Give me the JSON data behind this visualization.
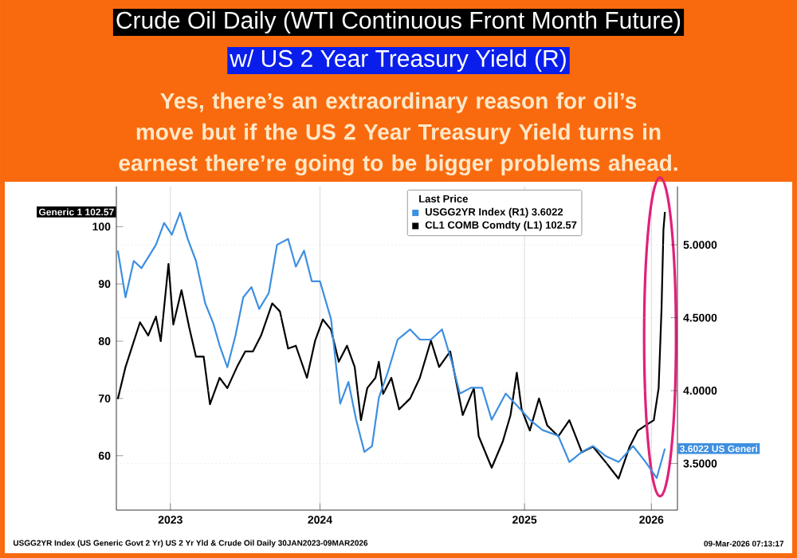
{
  "chart_data": {
    "type": "line",
    "title": "Crude Oil Daily (WTI Continuous Front Month Future)",
    "subtitle": "w/ US 2 Year Treasury Yield (R)",
    "legend_title": "Last Price",
    "annotations": [
      "Generic 1 102.57",
      "3.6022 US Generi",
      "Yes, there’s an extraordinary reason for oil’s move but if the US 2 Year Treasury Yield turns in earnest there’re going to be bigger problems ahead.",
      "USGG2YR Index (US Generic Govt 2 Yr) US 2 Yr Yld & Crude Oil Daily 30JAN2023-09MAR2026",
      "09-Mar-2026 07:13:17"
    ],
    "xlim": [
      "2023-01-27",
      "2026-04-04"
    ],
    "xticks": [
      {
        "value": "2023-05-19",
        "label": "2023"
      },
      {
        "value": "2024-03-24",
        "label": "2024"
      },
      {
        "value": "2025-05-22",
        "label": "2025"
      },
      {
        "value": "2026-02-09",
        "label": "2026"
      }
    ],
    "ylim": [
      50.5,
      107
    ],
    "yticks": [
      60,
      70,
      80,
      90,
      100
    ],
    "y2lim": [
      3.18,
      5.4
    ],
    "y2ticks": [
      {
        "value": 3.5,
        "label": "3.5000"
      },
      {
        "value": 4.0,
        "label": "4.0000"
      },
      {
        "value": 4.5,
        "label": "4.5000"
      },
      {
        "value": 5.0,
        "label": "5.0000"
      }
    ],
    "grid": true,
    "legend": "top right",
    "marker": "none",
    "line_style": "solid",
    "series": [
      {
        "name": "USGG2YR Index (R1) 3.6022",
        "color": "#3d8fe0",
        "axis": "y2",
        "x": [
          "2023-01-30",
          "2023-02-15",
          "2023-03-04",
          "2023-03-20",
          "2023-04-19",
          "2023-05-06",
          "2023-05-22",
          "2023-06-08",
          "2023-06-24",
          "2023-07-11",
          "2023-07-30",
          "2023-08-16",
          "2023-08-29",
          "2023-09-14",
          "2023-10-01",
          "2023-10-17",
          "2023-11-03",
          "2023-11-19",
          "2023-12-09",
          "2023-12-26",
          "2024-01-18",
          "2024-02-03",
          "2024-02-20",
          "2024-03-07",
          "2024-03-24",
          "2024-04-16",
          "2024-05-05",
          "2024-05-22",
          "2024-06-07",
          "2024-06-24",
          "2024-07-10",
          "2024-07-24",
          "2024-08-12",
          "2024-09-01",
          "2024-09-27",
          "2024-10-17",
          "2024-11-09",
          "2024-12-02",
          "2024-12-22",
          "2025-01-08",
          "2025-01-31",
          "2025-02-23",
          "2025-03-15",
          "2025-04-13",
          "2025-05-03",
          "2025-06-02",
          "2025-06-28",
          "2025-07-31",
          "2025-08-23",
          "2025-09-18",
          "2025-10-11",
          "2025-11-07",
          "2025-12-03",
          "2026-01-02",
          "2026-01-28",
          "2026-02-20",
          "2026-03-09"
        ],
        "values": [
          4.96,
          4.64,
          4.89,
          4.84,
          5.0,
          5.15,
          5.07,
          5.22,
          5.04,
          4.89,
          4.6,
          4.46,
          4.31,
          4.16,
          4.38,
          4.64,
          4.71,
          4.56,
          4.67,
          5.0,
          5.04,
          4.85,
          4.96,
          4.75,
          4.75,
          4.49,
          3.91,
          4.06,
          3.8,
          3.58,
          3.62,
          3.95,
          4.13,
          4.35,
          4.42,
          4.35,
          4.35,
          4.42,
          4.2,
          3.98,
          4.02,
          4.02,
          3.8,
          3.98,
          3.91,
          3.8,
          3.73,
          3.69,
          3.51,
          3.58,
          3.62,
          3.55,
          3.51,
          3.62,
          3.51,
          3.4,
          3.6022
        ]
      },
      {
        "name": "CL1 COMB Comdty (L1) 102.57",
        "color": "#000000",
        "x": [
          "2023-01-30",
          "2023-02-15",
          "2023-03-17",
          "2023-04-03",
          "2023-04-19",
          "2023-04-29",
          "2023-05-15",
          "2023-05-25",
          "2023-06-11",
          "2023-06-27",
          "2023-07-11",
          "2023-07-27",
          "2023-08-09",
          "2023-08-29",
          "2023-09-14",
          "2023-10-04",
          "2023-10-21",
          "2023-11-06",
          "2023-11-23",
          "2023-12-16",
          "2024-01-01",
          "2024-01-18",
          "2024-02-03",
          "2024-02-26",
          "2024-03-14",
          "2024-03-30",
          "2024-04-16",
          "2024-05-02",
          "2024-05-19",
          "2024-06-04",
          "2024-06-17",
          "2024-06-30",
          "2024-07-17",
          "2024-07-24",
          "2024-08-02",
          "2024-08-19",
          "2024-09-04",
          "2024-09-27",
          "2024-10-17",
          "2024-11-09",
          "2024-11-26",
          "2024-12-19",
          "2025-01-14",
          "2025-02-06",
          "2025-02-16",
          "2025-03-15",
          "2025-04-07",
          "2025-04-23",
          "2025-05-06",
          "2025-05-16",
          "2025-06-02",
          "2025-06-21",
          "2025-07-08",
          "2025-07-31",
          "2025-08-23",
          "2025-09-18",
          "2025-10-11",
          "2025-11-07",
          "2025-12-03",
          "2025-12-26",
          "2026-01-12",
          "2026-01-28",
          "2026-02-14",
          "2026-02-24",
          "2026-03-02",
          "2026-03-06",
          "2026-03-09"
        ],
        "values": [
          69.9,
          75.5,
          83.3,
          81,
          84.3,
          80,
          93.5,
          82.9,
          88.9,
          82.4,
          77.3,
          77.3,
          69,
          73.6,
          71.8,
          75.5,
          78.2,
          78.2,
          81,
          86.6,
          85.2,
          78.7,
          79.2,
          73.6,
          80.1,
          83.8,
          82,
          76.4,
          79.2,
          75.5,
          66.2,
          71.8,
          73.6,
          76.4,
          70.8,
          73.6,
          68.1,
          70,
          73.6,
          80.1,
          75.5,
          78.2,
          67.1,
          71.8,
          63.4,
          57.9,
          62.5,
          67.1,
          74.5,
          68.1,
          64.4,
          70,
          65.3,
          63.4,
          66.2,
          60.6,
          61.6,
          58.8,
          56,
          61.6,
          64.4,
          65.3,
          66.2,
          71.8,
          85.6,
          99.5,
          102.57
        ]
      }
    ]
  }
}
